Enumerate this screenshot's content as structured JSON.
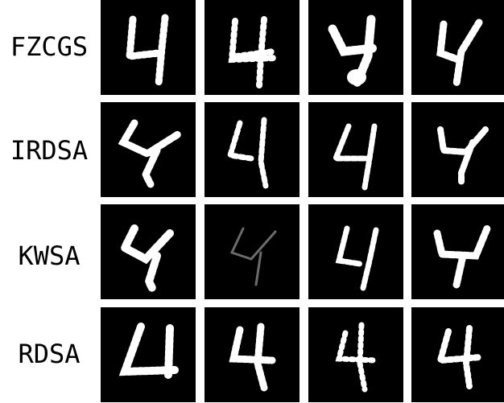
{
  "rows": [
    {
      "label": "FZCGS"
    },
    {
      "label": "IRDSA"
    },
    {
      "label": "KWSA"
    },
    {
      "label": "RDSA"
    }
  ],
  "grid": {
    "columns": 4
  },
  "colors": {
    "background": "#ffffff",
    "tile": "#000000",
    "digit": "#ffffff"
  },
  "image_content": "handwritten digit 4 under adversarial noise (grayscale MNIST-style)"
}
